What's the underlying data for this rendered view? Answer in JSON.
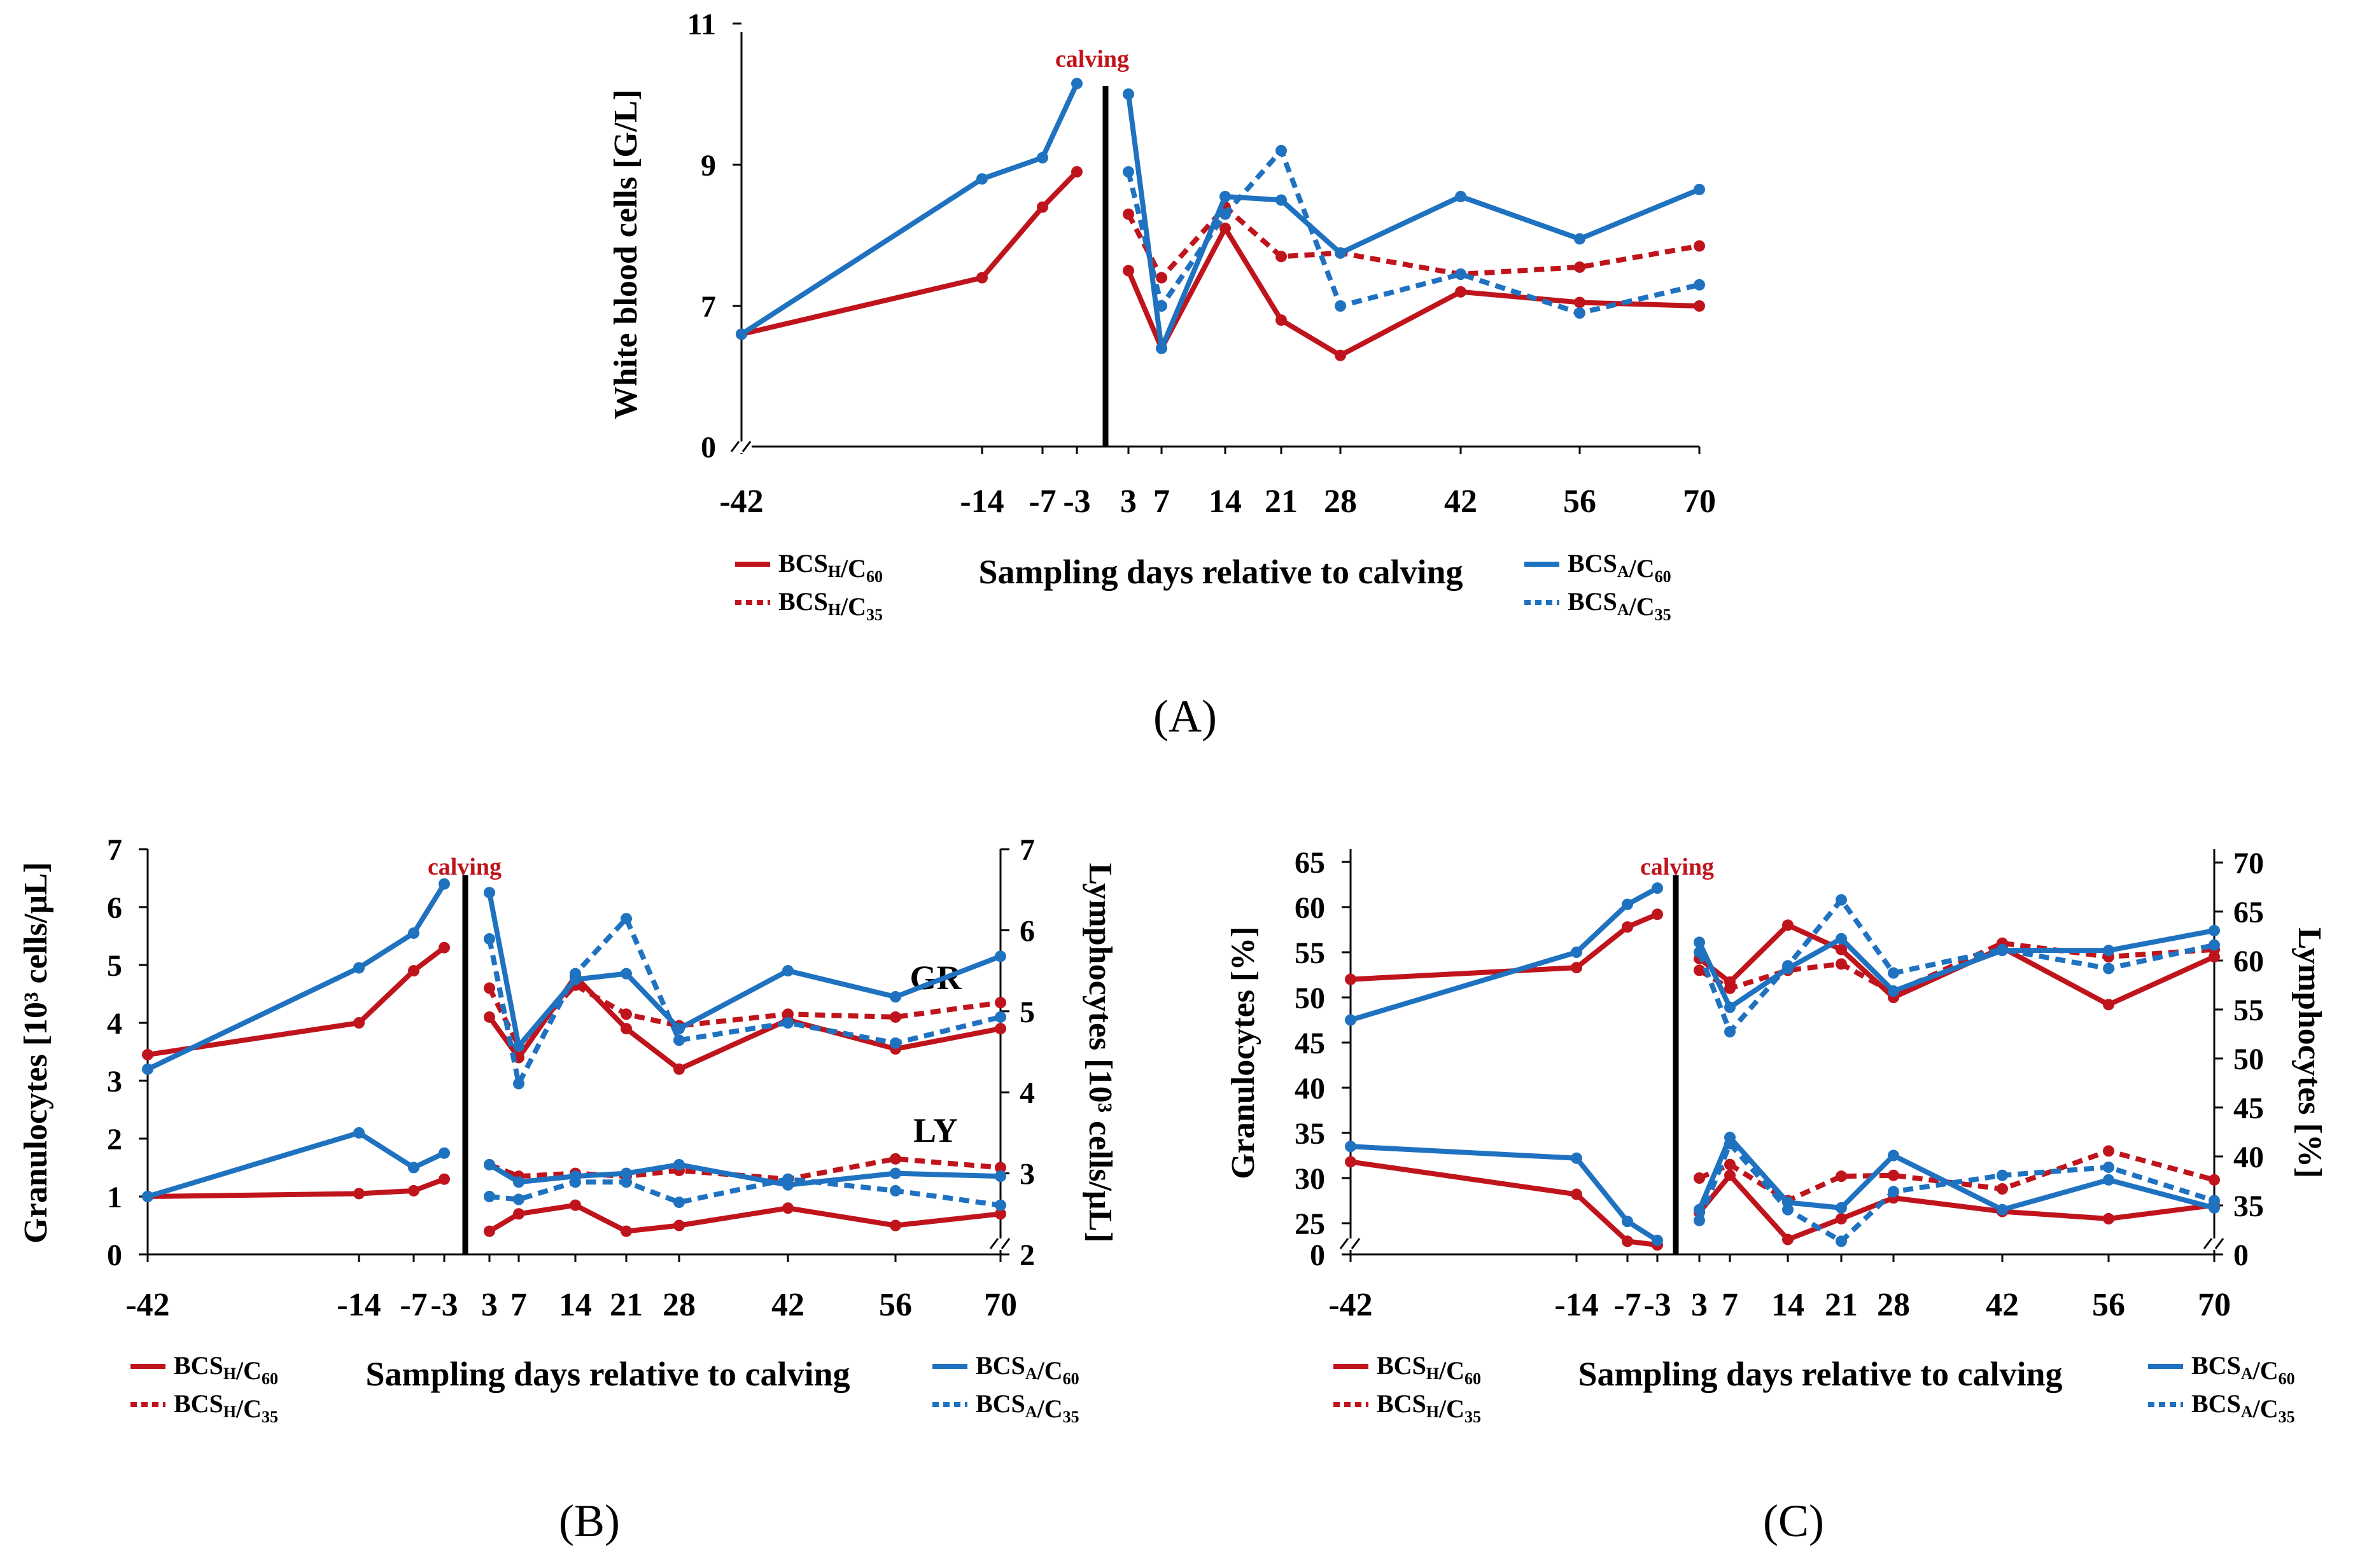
{
  "figure": {
    "panel_labels": [
      "(A)",
      "(B)",
      "(C)"
    ]
  },
  "colors": {
    "red": "#c0141c",
    "blue": "#1f72c0",
    "calving_text": "#c0141c"
  },
  "legend": {
    "h60": {
      "base": "BCS",
      "sub1": "H",
      "mid": "/C",
      "sub2": "60"
    },
    "h35": {
      "base": "BCS",
      "sub1": "H",
      "mid": "/C",
      "sub2": "35"
    },
    "a60": {
      "base": "BCS",
      "sub1": "A",
      "mid": "/C",
      "sub2": "60"
    },
    "a35": {
      "base": "BCS",
      "sub1": "A",
      "mid": "/C",
      "sub2": "35"
    }
  },
  "chart_data": [
    {
      "id": "A",
      "type": "line",
      "calving_label": "calving",
      "xlabel": "Sampling days relative to calving",
      "ylabel": "White blood cells [G/L]",
      "x_ticks": [
        -42,
        -14,
        -7,
        -3,
        3,
        7,
        14,
        21,
        28,
        42,
        56,
        70
      ],
      "y_ticks": [
        0,
        7,
        9,
        11
      ],
      "axis_break": true,
      "series": [
        {
          "name": "BCSH/C60",
          "color": "red",
          "dash": false,
          "pre": [
            [
              -42,
              6.6
            ],
            [
              -14,
              7.4
            ],
            [
              -7,
              8.4
            ],
            [
              -3,
              8.9
            ]
          ],
          "post": [
            [
              3,
              7.5
            ],
            [
              7,
              6.4
            ],
            [
              14,
              8.1
            ],
            [
              21,
              6.8
            ],
            [
              28,
              6.3
            ],
            [
              42,
              7.2
            ],
            [
              56,
              7.05
            ],
            [
              70,
              7.0
            ]
          ]
        },
        {
          "name": "BCSH/C35",
          "color": "red",
          "dash": true,
          "pre": [],
          "post": [
            [
              3,
              8.3
            ],
            [
              7,
              7.4
            ],
            [
              14,
              8.4
            ],
            [
              21,
              7.7
            ],
            [
              28,
              7.75
            ],
            [
              42,
              7.45
            ],
            [
              56,
              7.55
            ],
            [
              70,
              7.85
            ]
          ]
        },
        {
          "name": "BCSA/C60",
          "color": "blue",
          "dash": false,
          "pre": [
            [
              -42,
              6.6
            ],
            [
              -14,
              8.8
            ],
            [
              -7,
              9.1
            ],
            [
              -3,
              10.15
            ]
          ],
          "post": [
            [
              3,
              10.0
            ],
            [
              7,
              6.4
            ],
            [
              14,
              8.55
            ],
            [
              21,
              8.5
            ],
            [
              28,
              7.75
            ],
            [
              42,
              8.55
            ],
            [
              56,
              7.95
            ],
            [
              70,
              8.65
            ]
          ]
        },
        {
          "name": "BCSA/C35",
          "color": "blue",
          "dash": true,
          "pre": [],
          "post": [
            [
              3,
              8.9
            ],
            [
              7,
              7.0
            ],
            [
              14,
              8.3
            ],
            [
              21,
              9.2
            ],
            [
              28,
              7.0
            ],
            [
              42,
              7.45
            ],
            [
              56,
              6.9
            ],
            [
              70,
              7.3
            ]
          ]
        }
      ]
    },
    {
      "id": "B",
      "type": "line",
      "calving_label": "calving",
      "xlabel": "Sampling days relative to calving",
      "ylabel": "Granulocytes [10³ cells/μL]",
      "ylabel_right": "Lymphocytes [10³ cells/μL]",
      "group_labels": [
        "GR",
        "LY"
      ],
      "x_ticks": [
        -42,
        -14,
        -7,
        -3,
        3,
        7,
        14,
        21,
        28,
        42,
        56,
        70
      ],
      "y_ticks": [
        0,
        1,
        2,
        3,
        4,
        5,
        6,
        7
      ],
      "y_ticks_right": [
        2,
        3,
        4,
        5,
        6,
        7
      ],
      "axis_break_right": true,
      "series": [
        {
          "name": "GR BCSH/C60",
          "color": "red",
          "dash": false,
          "pre": [
            [
              -42,
              3.45
            ],
            [
              -14,
              4.0
            ],
            [
              -7,
              4.9
            ],
            [
              -3,
              5.3
            ]
          ],
          "post": [
            [
              3,
              4.1
            ],
            [
              7,
              3.4
            ],
            [
              14,
              4.8
            ],
            [
              21,
              3.9
            ],
            [
              28,
              3.2
            ],
            [
              42,
              4.05
            ],
            [
              56,
              3.55
            ],
            [
              70,
              3.9
            ]
          ]
        },
        {
          "name": "GR BCSH/C35",
          "color": "red",
          "dash": true,
          "pre": [],
          "post": [
            [
              3,
              4.6
            ],
            [
              7,
              3.6
            ],
            [
              14,
              4.65
            ],
            [
              21,
              4.15
            ],
            [
              28,
              3.95
            ],
            [
              42,
              4.15
            ],
            [
              56,
              4.1
            ],
            [
              70,
              4.35
            ]
          ]
        },
        {
          "name": "GR BCSA/C60",
          "color": "blue",
          "dash": false,
          "pre": [
            [
              -42,
              3.2
            ],
            [
              -14,
              4.95
            ],
            [
              -7,
              5.55
            ],
            [
              -3,
              6.4
            ]
          ],
          "post": [
            [
              3,
              6.25
            ],
            [
              7,
              3.6
            ],
            [
              14,
              4.75
            ],
            [
              21,
              4.85
            ],
            [
              28,
              3.9
            ],
            [
              42,
              4.9
            ],
            [
              56,
              4.45
            ],
            [
              70,
              5.15
            ]
          ]
        },
        {
          "name": "GR BCSA/C35",
          "color": "blue",
          "dash": true,
          "pre": [],
          "post": [
            [
              3,
              5.45
            ],
            [
              7,
              2.95
            ],
            [
              14,
              4.85
            ],
            [
              21,
              5.8
            ],
            [
              28,
              3.7
            ],
            [
              42,
              4.0
            ],
            [
              56,
              3.65
            ],
            [
              70,
              4.1
            ]
          ]
        },
        {
          "name": "LY BCSH/C60",
          "color": "red",
          "dash": false,
          "pre": [
            [
              -42,
              1.0
            ],
            [
              -14,
              1.05
            ],
            [
              -7,
              1.1
            ],
            [
              -3,
              1.3
            ]
          ],
          "post": [
            [
              3,
              0.4
            ],
            [
              7,
              0.7
            ],
            [
              14,
              0.85
            ],
            [
              21,
              0.4
            ],
            [
              28,
              0.5
            ],
            [
              42,
              0.8
            ],
            [
              56,
              0.5
            ],
            [
              70,
              0.7
            ]
          ]
        },
        {
          "name": "LY BCSH/C35",
          "color": "red",
          "dash": true,
          "pre": [],
          "post": [
            [
              3,
              1.55
            ],
            [
              7,
              1.35
            ],
            [
              14,
              1.4
            ],
            [
              21,
              1.35
            ],
            [
              28,
              1.45
            ],
            [
              42,
              1.3
            ],
            [
              56,
              1.65
            ],
            [
              70,
              1.5
            ]
          ]
        },
        {
          "name": "LY BCSA/C60",
          "color": "blue",
          "dash": false,
          "pre": [
            [
              -42,
              1.0
            ],
            [
              -14,
              2.1
            ],
            [
              -7,
              1.5
            ],
            [
              -3,
              1.75
            ]
          ],
          "post": [
            [
              3,
              1.55
            ],
            [
              7,
              1.25
            ],
            [
              14,
              1.35
            ],
            [
              21,
              1.4
            ],
            [
              28,
              1.55
            ],
            [
              42,
              1.2
            ],
            [
              56,
              1.4
            ],
            [
              70,
              1.35
            ]
          ]
        },
        {
          "name": "LY BCSA/C35",
          "color": "blue",
          "dash": true,
          "pre": [],
          "post": [
            [
              3,
              1.0
            ],
            [
              7,
              0.95
            ],
            [
              14,
              1.25
            ],
            [
              21,
              1.25
            ],
            [
              28,
              0.9
            ],
            [
              42,
              1.3
            ],
            [
              56,
              1.1
            ],
            [
              70,
              0.85
            ]
          ]
        }
      ]
    },
    {
      "id": "C",
      "type": "line",
      "calving_label": "calving",
      "xlabel": "Sampling days relative to calving",
      "ylabel": "Granulocytes [%]",
      "ylabel_right": "Lymphocytes [%]",
      "x_ticks": [
        -42,
        -14,
        -7,
        -3,
        3,
        7,
        14,
        21,
        28,
        42,
        56,
        70
      ],
      "y_ticks": [
        0,
        25,
        30,
        35,
        40,
        45,
        50,
        55,
        60,
        65
      ],
      "y_ticks_right": [
        0,
        35,
        40,
        45,
        50,
        55,
        60,
        65,
        70
      ],
      "axis_break": true,
      "axis_break_right": true,
      "series": [
        {
          "name": "GR BCSH/C60",
          "color": "red",
          "dash": false,
          "pre": [
            [
              -42,
              52.0
            ],
            [
              -14,
              53.3
            ],
            [
              -7,
              57.8
            ],
            [
              -3,
              59.2
            ]
          ],
          "post": [
            [
              3,
              54.3
            ],
            [
              7,
              51.7
            ],
            [
              14,
              58.0
            ],
            [
              21,
              55.3
            ],
            [
              28,
              50.0
            ],
            [
              42,
              55.5
            ],
            [
              56,
              49.2
            ],
            [
              70,
              54.5
            ]
          ]
        },
        {
          "name": "GR BCSH/C35",
          "color": "red",
          "dash": true,
          "pre": [],
          "post": [
            [
              3,
              53.0
            ],
            [
              7,
              51.0
            ],
            [
              14,
              53.0
            ],
            [
              21,
              53.7
            ],
            [
              28,
              50.5
            ],
            [
              42,
              56.0
            ],
            [
              56,
              54.5
            ],
            [
              70,
              55.3
            ]
          ]
        },
        {
          "name": "GR BCSA/C60",
          "color": "blue",
          "dash": false,
          "pre": [
            [
              -42,
              47.5
            ],
            [
              -14,
              55.0
            ],
            [
              -7,
              60.3
            ],
            [
              -3,
              62.1
            ]
          ],
          "post": [
            [
              3,
              56.1
            ],
            [
              7,
              48.9
            ],
            [
              14,
              53.2
            ],
            [
              21,
              56.5
            ],
            [
              28,
              50.7
            ],
            [
              42,
              55.2
            ],
            [
              56,
              55.2
            ],
            [
              70,
              57.4
            ]
          ]
        },
        {
          "name": "GR BCSA/C35",
          "color": "blue",
          "dash": true,
          "pre": [],
          "post": [
            [
              3,
              55.0
            ],
            [
              7,
              46.2
            ],
            [
              14,
              53.5
            ],
            [
              21,
              60.8
            ],
            [
              28,
              52.7
            ],
            [
              42,
              55.3
            ],
            [
              56,
              53.2
            ],
            [
              70,
              55.8
            ]
          ]
        },
        {
          "name": "LY BCSH/C60",
          "color": "red",
          "dash": false,
          "pre": [
            [
              -42,
              31.8
            ],
            [
              -14,
              28.2
            ],
            [
              -7,
              23.0
            ],
            [
              -3,
              22.6
            ]
          ],
          "post": [
            [
              3,
              26.2
            ],
            [
              7,
              30.3
            ],
            [
              14,
              23.2
            ],
            [
              21,
              25.5
            ],
            [
              28,
              27.8
            ],
            [
              42,
              26.3
            ],
            [
              56,
              25.5
            ],
            [
              70,
              27.0
            ]
          ]
        },
        {
          "name": "LY BCSH/C35",
          "color": "red",
          "dash": true,
          "pre": [],
          "post": [
            [
              3,
              30.0
            ],
            [
              7,
              31.5
            ],
            [
              14,
              27.5
            ],
            [
              21,
              30.2
            ],
            [
              28,
              30.3
            ],
            [
              42,
              28.8
            ],
            [
              56,
              33.0
            ],
            [
              70,
              29.8
            ]
          ]
        },
        {
          "name": "LY BCSA/C60",
          "color": "blue",
          "dash": false,
          "pre": [
            [
              -42,
              33.5
            ],
            [
              -14,
              32.2
            ],
            [
              -7,
              25.2
            ],
            [
              -3,
              23.1
            ]
          ],
          "post": [
            [
              3,
              26.5
            ],
            [
              7,
              34.5
            ],
            [
              14,
              27.3
            ],
            [
              21,
              26.7
            ],
            [
              28,
              32.5
            ],
            [
              42,
              26.5
            ],
            [
              56,
              29.8
            ],
            [
              70,
              26.7
            ]
          ]
        },
        {
          "name": "LY BCSA/C35",
          "color": "blue",
          "dash": true,
          "pre": [],
          "post": [
            [
              3,
              25.3
            ],
            [
              7,
              33.8
            ],
            [
              14,
              26.5
            ],
            [
              21,
              23.0
            ],
            [
              28,
              28.5
            ],
            [
              42,
              30.3
            ],
            [
              56,
              31.2
            ],
            [
              70,
              27.5
            ]
          ]
        }
      ]
    }
  ]
}
